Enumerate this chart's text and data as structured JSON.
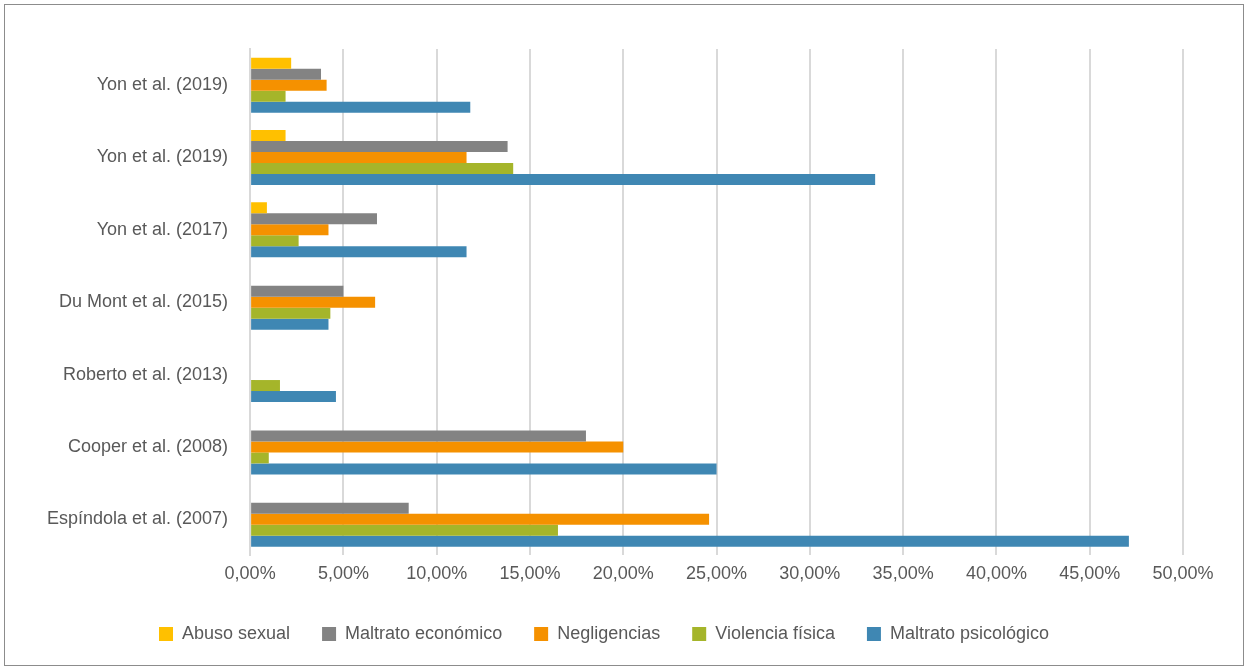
{
  "chart_data": {
    "type": "bar",
    "orientation": "horizontal",
    "categories": [
      "Yon et al. (2019)",
      "Yon et al. (2019)",
      "Yon et al. (2017)",
      "Du Mont et al. (2015)",
      "Roberto et al. (2013)",
      "Cooper et al. (2008)",
      "Espíndola et al. (2007)"
    ],
    "series": [
      {
        "name": "Abuso sexual",
        "color": "#ffc000",
        "values": [
          2.2,
          1.9,
          0.9,
          null,
          null,
          null,
          null
        ]
      },
      {
        "name": "Maltrato económico",
        "color": "#838383",
        "values": [
          3.8,
          13.8,
          6.8,
          5.0,
          null,
          18.0,
          8.5
        ]
      },
      {
        "name": "Negligencias",
        "color": "#f59100",
        "values": [
          4.1,
          11.6,
          4.2,
          6.7,
          null,
          20.0,
          24.6
        ]
      },
      {
        "name": "Violencia física",
        "color": "#a5b52a",
        "values": [
          1.9,
          14.1,
          2.6,
          4.3,
          1.6,
          1.0,
          16.5
        ]
      },
      {
        "name": "Maltrato psicológico",
        "color": "#3f87b3",
        "values": [
          11.8,
          33.5,
          11.6,
          4.2,
          4.6,
          25.0,
          47.1
        ]
      }
    ],
    "xlim": [
      0,
      50
    ],
    "xticks": [
      {
        "value": 0,
        "label": "0,00%"
      },
      {
        "value": 5,
        "label": "5,00%"
      },
      {
        "value": 10,
        "label": "10,00%"
      },
      {
        "value": 15,
        "label": "15,00%"
      },
      {
        "value": 20,
        "label": "20,00%"
      },
      {
        "value": 25,
        "label": "25,00%"
      },
      {
        "value": 30,
        "label": "30,00%"
      },
      {
        "value": 35,
        "label": "35,00%"
      },
      {
        "value": 40,
        "label": "40,00%"
      },
      {
        "value": 45,
        "label": "45,00%"
      },
      {
        "value": 50,
        "label": "50,00%"
      }
    ],
    "grid": "x",
    "legend": "bottom"
  }
}
